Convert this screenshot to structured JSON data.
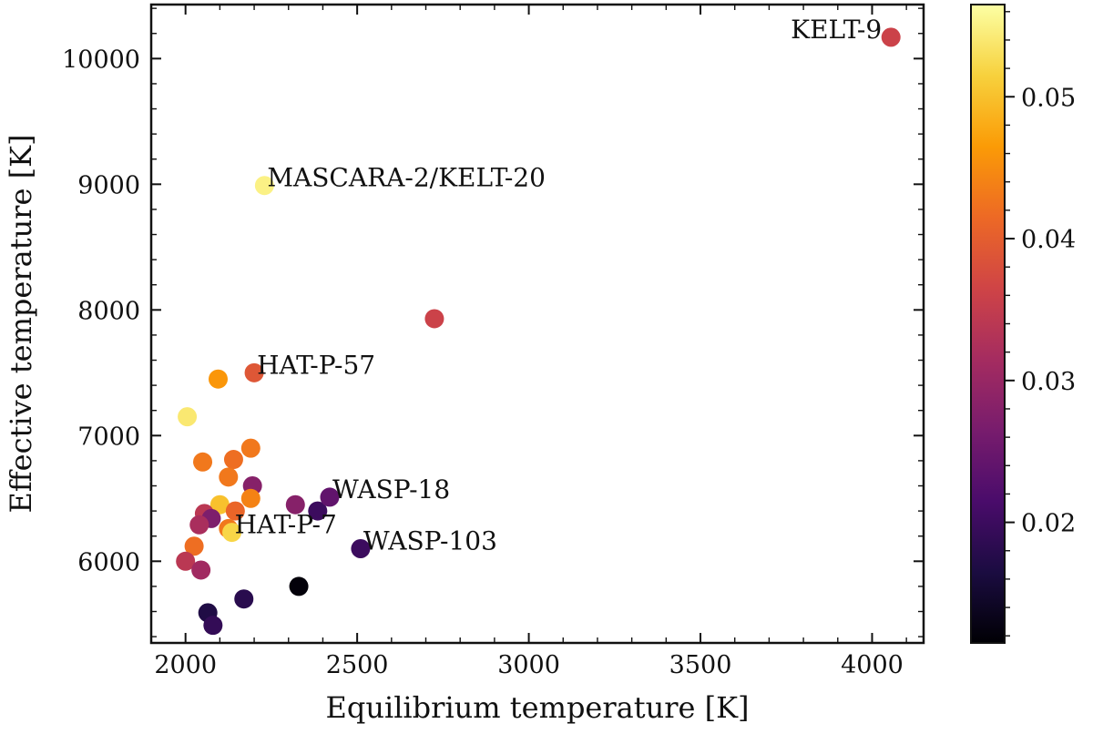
{
  "chart_data": {
    "type": "scatter",
    "xlabel": "Equilibrium temperature [K]",
    "ylabel": "Effective temperature [K]",
    "xlim": [
      1900,
      4150
    ],
    "ylim": [
      5350,
      10430
    ],
    "x_ticks": [
      2000,
      2500,
      3000,
      3500,
      4000
    ],
    "x_tick_labels": [
      "2000",
      "2500",
      "3000",
      "3500",
      "4000"
    ],
    "y_ticks": [
      6000,
      7000,
      8000,
      9000,
      10000
    ],
    "y_tick_labels": [
      "6000",
      "7000",
      "8000",
      "9000",
      "10000"
    ],
    "colorbar": {
      "label": "",
      "range": [
        0.0115,
        0.0565
      ],
      "ticks": [
        0.02,
        0.03,
        0.04,
        0.05
      ],
      "tick_labels": [
        "0.02",
        "0.03",
        "0.04",
        "0.05"
      ],
      "colormap": "inferno",
      "colormap_stops": [
        "#000004",
        "#1b0c41",
        "#4a0c6b",
        "#781c6d",
        "#a52c60",
        "#cf4446",
        "#ed6925",
        "#fb9b06",
        "#f7d13d",
        "#fcffa4"
      ]
    },
    "points": [
      {
        "x": 4055,
        "y": 10170,
        "c": 0.036
      },
      {
        "x": 2230,
        "y": 8990,
        "c": 0.055
      },
      {
        "x": 2725,
        "y": 7930,
        "c": 0.036
      },
      {
        "x": 2200,
        "y": 7500,
        "c": 0.039
      },
      {
        "x": 2095,
        "y": 7450,
        "c": 0.046
      },
      {
        "x": 2005,
        "y": 7150,
        "c": 0.054
      },
      {
        "x": 2050,
        "y": 6790,
        "c": 0.043
      },
      {
        "x": 2140,
        "y": 6810,
        "c": 0.042
      },
      {
        "x": 2190,
        "y": 6900,
        "c": 0.043
      },
      {
        "x": 2125,
        "y": 6670,
        "c": 0.043
      },
      {
        "x": 2195,
        "y": 6600,
        "c": 0.028
      },
      {
        "x": 2190,
        "y": 6500,
        "c": 0.044
      },
      {
        "x": 2100,
        "y": 6450,
        "c": 0.05
      },
      {
        "x": 2145,
        "y": 6400,
        "c": 0.041
      },
      {
        "x": 2055,
        "y": 6380,
        "c": 0.034
      },
      {
        "x": 2075,
        "y": 6340,
        "c": 0.027
      },
      {
        "x": 2040,
        "y": 6290,
        "c": 0.032
      },
      {
        "x": 2125,
        "y": 6260,
        "c": 0.043
      },
      {
        "x": 2135,
        "y": 6230,
        "c": 0.052
      },
      {
        "x": 2025,
        "y": 6120,
        "c": 0.042
      },
      {
        "x": 2000,
        "y": 6000,
        "c": 0.034
      },
      {
        "x": 2045,
        "y": 5930,
        "c": 0.031
      },
      {
        "x": 2320,
        "y": 6450,
        "c": 0.028
      },
      {
        "x": 2385,
        "y": 6400,
        "c": 0.02
      },
      {
        "x": 2420,
        "y": 6510,
        "c": 0.024
      },
      {
        "x": 2510,
        "y": 6100,
        "c": 0.02
      },
      {
        "x": 2330,
        "y": 5800,
        "c": 0.012
      },
      {
        "x": 2170,
        "y": 5700,
        "c": 0.018
      },
      {
        "x": 2065,
        "y": 5590,
        "c": 0.017
      },
      {
        "x": 2080,
        "y": 5490,
        "c": 0.019
      }
    ],
    "annotations": [
      {
        "text": "KELT-9",
        "x": 4055,
        "y": 10170,
        "anchor": "end"
      },
      {
        "text": "MASCARA-2/KELT-20",
        "x": 2230,
        "y": 8990,
        "anchor": "start"
      },
      {
        "text": "HAT-P-57",
        "x": 2200,
        "y": 7500,
        "anchor": "start"
      },
      {
        "text": "WASP-18",
        "x": 2420,
        "y": 6510,
        "anchor": "start"
      },
      {
        "text": "HAT-P-7",
        "x": 2135,
        "y": 6230,
        "anchor": "start"
      },
      {
        "text": "WASP-103",
        "x": 2510,
        "y": 6100,
        "anchor": "start"
      }
    ]
  }
}
